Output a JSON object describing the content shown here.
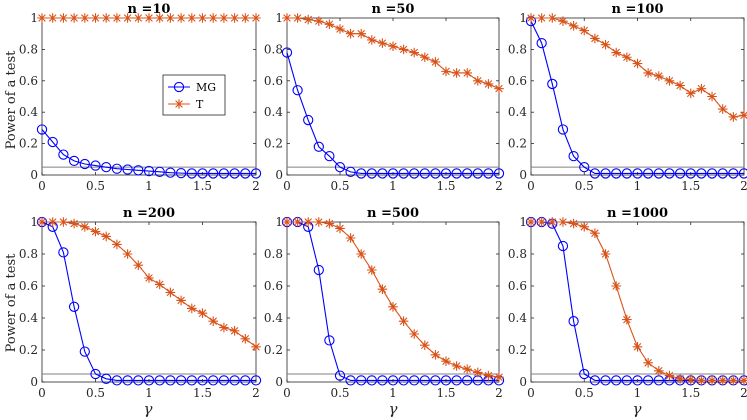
{
  "figure": {
    "ylabel": "Power of a test",
    "xlabel": "γ"
  },
  "legend": [
    {
      "name": "MG",
      "color": "#0000ff",
      "marker": "circle"
    },
    {
      "name": "T",
      "color": "#d95319",
      "marker": "asterisk"
    }
  ],
  "styles": {
    "mg_color": "#0000ff",
    "t_color": "#d95319",
    "ref_color": "#808080"
  },
  "chart_data": [
    {
      "type": "line",
      "title": "n =10",
      "xlim": [
        0,
        2
      ],
      "ylim": [
        0,
        1
      ],
      "xticks": [
        0,
        0.5,
        1,
        1.5,
        2
      ],
      "yticks": [
        0,
        0.2,
        0.4,
        0.6,
        0.8,
        1
      ],
      "reference_line": 0.05,
      "x": [
        0,
        0.1,
        0.2,
        0.3,
        0.4,
        0.5,
        0.6,
        0.7,
        0.8,
        0.9,
        1.0,
        1.1,
        1.2,
        1.3,
        1.4,
        1.5,
        1.6,
        1.7,
        1.8,
        1.9,
        2.0
      ],
      "series": [
        {
          "name": "MG",
          "values": [
            0.29,
            0.21,
            0.13,
            0.09,
            0.07,
            0.06,
            0.05,
            0.04,
            0.035,
            0.03,
            0.025,
            0.02,
            0.015,
            0.012,
            0.01,
            0.01,
            0.01,
            0.01,
            0.01,
            0.01,
            0.01
          ]
        },
        {
          "name": "T",
          "values": [
            1,
            1,
            1,
            1,
            1,
            1,
            1,
            1,
            1,
            1,
            1,
            1,
            1,
            1,
            1,
            1,
            1,
            1,
            1,
            1,
            1
          ]
        }
      ]
    },
    {
      "type": "line",
      "title": "n =50",
      "xlim": [
        0,
        2
      ],
      "ylim": [
        0,
        1
      ],
      "xticks": [
        0,
        0.5,
        1,
        1.5,
        2
      ],
      "yticks": [
        0,
        0.2,
        0.4,
        0.6,
        0.8,
        1
      ],
      "reference_line": 0.05,
      "x": [
        0,
        0.1,
        0.2,
        0.3,
        0.4,
        0.5,
        0.6,
        0.7,
        0.8,
        0.9,
        1.0,
        1.1,
        1.2,
        1.3,
        1.4,
        1.5,
        1.6,
        1.7,
        1.8,
        1.9,
        2.0
      ],
      "series": [
        {
          "name": "MG",
          "values": [
            0.78,
            0.54,
            0.35,
            0.18,
            0.12,
            0.05,
            0.02,
            0.01,
            0.01,
            0.01,
            0.01,
            0.01,
            0.01,
            0.01,
            0.01,
            0.01,
            0.01,
            0.01,
            0.01,
            0.01,
            0.01
          ]
        },
        {
          "name": "T",
          "values": [
            1,
            1,
            0.99,
            0.98,
            0.96,
            0.93,
            0.9,
            0.9,
            0.86,
            0.84,
            0.82,
            0.8,
            0.78,
            0.75,
            0.72,
            0.66,
            0.65,
            0.65,
            0.6,
            0.58,
            0.55
          ]
        }
      ]
    },
    {
      "type": "line",
      "title": "n =100",
      "xlim": [
        0,
        2
      ],
      "ylim": [
        0,
        1
      ],
      "xticks": [
        0,
        0.5,
        1,
        1.5,
        2
      ],
      "yticks": [
        0,
        0.2,
        0.4,
        0.6,
        0.8,
        1
      ],
      "reference_line": 0.05,
      "x": [
        0,
        0.1,
        0.2,
        0.3,
        0.4,
        0.5,
        0.6,
        0.7,
        0.8,
        0.9,
        1.0,
        1.1,
        1.2,
        1.3,
        1.4,
        1.5,
        1.6,
        1.7,
        1.8,
        1.9,
        2.0
      ],
      "series": [
        {
          "name": "MG",
          "values": [
            0.98,
            0.84,
            0.58,
            0.29,
            0.12,
            0.05,
            0.01,
            0.01,
            0.01,
            0.01,
            0.01,
            0.01,
            0.01,
            0.01,
            0.01,
            0.01,
            0.01,
            0.01,
            0.01,
            0.01,
            0.01
          ]
        },
        {
          "name": "T",
          "values": [
            1,
            1,
            1,
            0.98,
            0.95,
            0.92,
            0.87,
            0.83,
            0.78,
            0.75,
            0.71,
            0.65,
            0.63,
            0.6,
            0.57,
            0.52,
            0.55,
            0.5,
            0.42,
            0.37,
            0.38
          ]
        }
      ]
    },
    {
      "type": "line",
      "title": "n =200",
      "xlim": [
        0,
        2
      ],
      "ylim": [
        0,
        1
      ],
      "xticks": [
        0,
        0.5,
        1,
        1.5,
        2
      ],
      "yticks": [
        0,
        0.2,
        0.4,
        0.6,
        0.8,
        1
      ],
      "reference_line": 0.05,
      "x": [
        0,
        0.1,
        0.2,
        0.3,
        0.4,
        0.5,
        0.6,
        0.7,
        0.8,
        0.9,
        1.0,
        1.1,
        1.2,
        1.3,
        1.4,
        1.5,
        1.6,
        1.7,
        1.8,
        1.9,
        2.0
      ],
      "series": [
        {
          "name": "MG",
          "values": [
            1.0,
            0.97,
            0.81,
            0.47,
            0.19,
            0.05,
            0.02,
            0.01,
            0.01,
            0.01,
            0.01,
            0.01,
            0.01,
            0.01,
            0.01,
            0.01,
            0.01,
            0.01,
            0.01,
            0.01,
            0.01
          ]
        },
        {
          "name": "T",
          "values": [
            1,
            1,
            1,
            0.99,
            0.97,
            0.94,
            0.91,
            0.86,
            0.8,
            0.73,
            0.65,
            0.61,
            0.56,
            0.51,
            0.46,
            0.43,
            0.38,
            0.34,
            0.32,
            0.27,
            0.22
          ]
        }
      ]
    },
    {
      "type": "line",
      "title": "n =500",
      "xlim": [
        0,
        2
      ],
      "ylim": [
        0,
        1
      ],
      "xticks": [
        0,
        0.5,
        1,
        1.5,
        2
      ],
      "yticks": [
        0,
        0.2,
        0.4,
        0.6,
        0.8,
        1
      ],
      "reference_line": 0.05,
      "x": [
        0,
        0.1,
        0.2,
        0.3,
        0.4,
        0.5,
        0.6,
        0.7,
        0.8,
        0.9,
        1.0,
        1.1,
        1.2,
        1.3,
        1.4,
        1.5,
        1.6,
        1.7,
        1.8,
        1.9,
        2.0
      ],
      "series": [
        {
          "name": "MG",
          "values": [
            1.0,
            1.0,
            0.97,
            0.7,
            0.26,
            0.04,
            0.01,
            0.01,
            0.01,
            0.01,
            0.01,
            0.01,
            0.01,
            0.01,
            0.01,
            0.01,
            0.01,
            0.01,
            0.01,
            0.01,
            0.01
          ]
        },
        {
          "name": "T",
          "values": [
            1,
            1,
            1,
            1,
            0.99,
            0.96,
            0.9,
            0.8,
            0.7,
            0.58,
            0.47,
            0.38,
            0.3,
            0.23,
            0.17,
            0.13,
            0.1,
            0.08,
            0.06,
            0.04,
            0.03
          ]
        }
      ]
    },
    {
      "type": "line",
      "title": "n =1000",
      "xlim": [
        0,
        2
      ],
      "ylim": [
        0,
        1
      ],
      "xticks": [
        0,
        0.5,
        1,
        1.5,
        2
      ],
      "yticks": [
        0,
        0.2,
        0.4,
        0.6,
        0.8,
        1
      ],
      "reference_line": 0.05,
      "x": [
        0,
        0.1,
        0.2,
        0.3,
        0.4,
        0.5,
        0.6,
        0.7,
        0.8,
        0.9,
        1.0,
        1.1,
        1.2,
        1.3,
        1.4,
        1.5,
        1.6,
        1.7,
        1.8,
        1.9,
        2.0
      ],
      "series": [
        {
          "name": "MG",
          "values": [
            1.0,
            1.0,
            0.99,
            0.85,
            0.38,
            0.05,
            0.01,
            0.01,
            0.01,
            0.01,
            0.01,
            0.01,
            0.01,
            0.01,
            0.01,
            0.01,
            0.01,
            0.01,
            0.01,
            0.01,
            0.01
          ]
        },
        {
          "name": "T",
          "values": [
            1,
            1,
            1,
            1,
            0.99,
            0.97,
            0.93,
            0.8,
            0.6,
            0.39,
            0.22,
            0.12,
            0.07,
            0.04,
            0.02,
            0.015,
            0.01,
            0.01,
            0.01,
            0.01,
            0.01
          ]
        }
      ]
    }
  ]
}
